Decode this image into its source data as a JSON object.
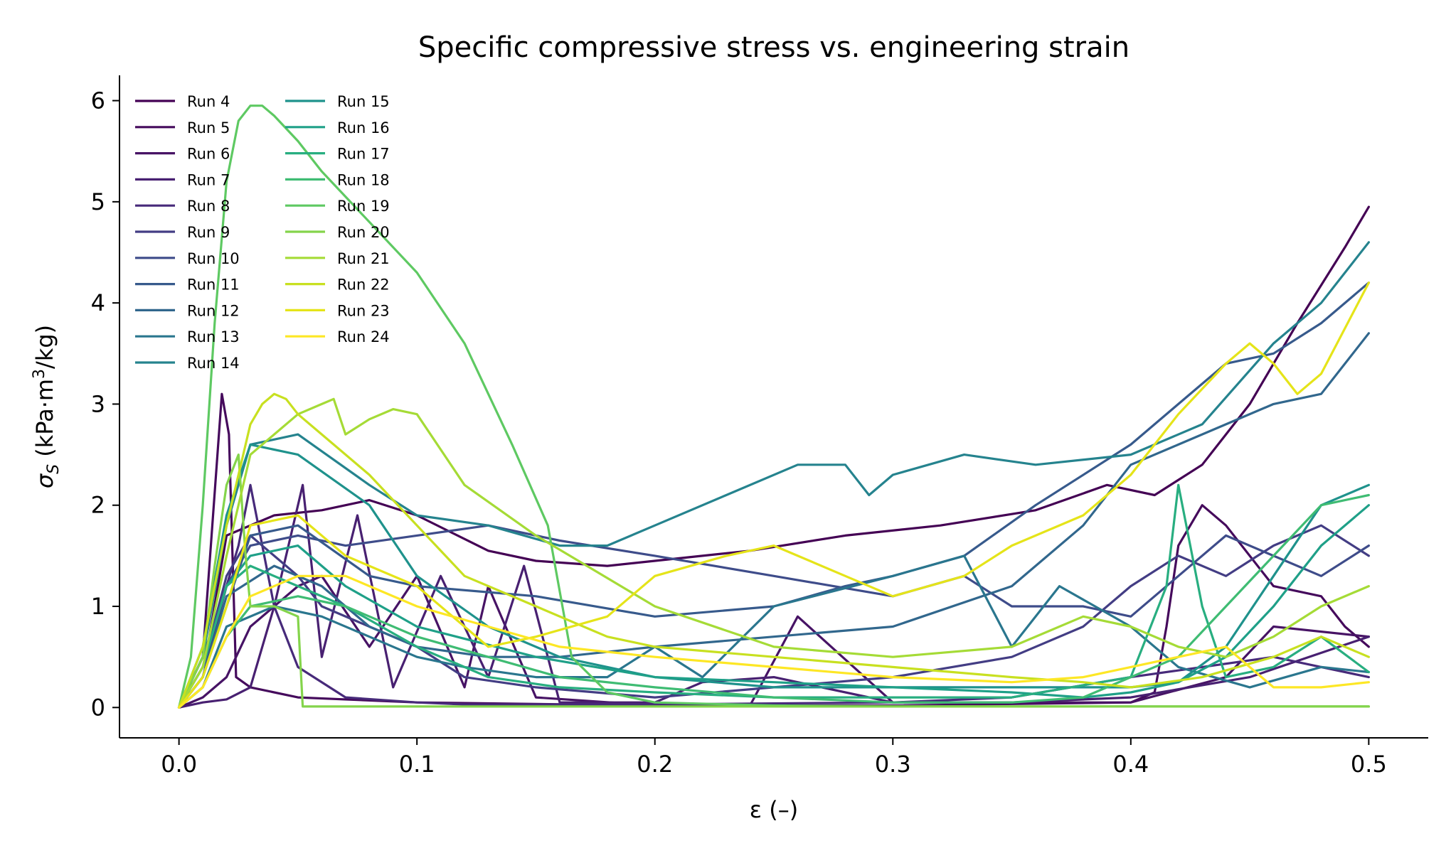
{
  "chart_data": {
    "type": "line",
    "title": "Specific compressive stress vs. engineering strain",
    "xlabel": "ε (–)",
    "ylabel_main": "σ",
    "ylabel_sub": "S",
    "ylabel_units": " (kPa·m",
    "ylabel_sup": "3",
    "ylabel_end": "/kg)",
    "xlim": [
      -0.025,
      0.525
    ],
    "ylim": [
      -0.3,
      6.25
    ],
    "x_ticks": [
      0.0,
      0.1,
      0.2,
      0.3,
      0.4,
      0.5
    ],
    "x_tick_labels": [
      "0.0",
      "0.1",
      "0.2",
      "0.3",
      "0.4",
      "0.5"
    ],
    "y_ticks": [
      0,
      1,
      2,
      3,
      4,
      5,
      6
    ],
    "y_tick_labels": [
      "0",
      "1",
      "2",
      "3",
      "4",
      "5",
      "6"
    ],
    "grid": false,
    "legend_position": "top-left",
    "legend_columns": 2,
    "series": [
      {
        "name": "Run 4",
        "color": "#440154",
        "x": [
          0,
          0.012,
          0.02,
          0.04,
          0.06,
          0.08,
          0.1,
          0.13,
          0.15,
          0.18,
          0.2,
          0.24,
          0.28,
          0.32,
          0.36,
          0.39,
          0.41,
          0.43,
          0.45,
          0.47,
          0.49,
          0.5
        ],
        "y": [
          0,
          0.6,
          1.7,
          1.9,
          1.95,
          2.05,
          1.9,
          1.55,
          1.45,
          1.4,
          1.45,
          1.55,
          1.7,
          1.8,
          1.95,
          2.2,
          2.1,
          2.4,
          3.0,
          3.8,
          4.55,
          4.95
        ]
      },
      {
        "name": "Run 5",
        "color": "#450a5c",
        "x": [
          0,
          0.01,
          0.018,
          0.021,
          0.024,
          0.03,
          0.05,
          0.1,
          0.2,
          0.3,
          0.4,
          0.41,
          0.415,
          0.42,
          0.43,
          0.44,
          0.46,
          0.48,
          0.49,
          0.5
        ],
        "y": [
          0,
          0.5,
          3.1,
          2.7,
          0.3,
          0.2,
          0.1,
          0.05,
          0.02,
          0.02,
          0.05,
          0.15,
          0.8,
          1.6,
          2.0,
          1.8,
          1.2,
          1.1,
          0.8,
          0.6
        ]
      },
      {
        "name": "Run 6",
        "color": "#471365",
        "x": [
          0,
          0.01,
          0.02,
          0.03,
          0.05,
          0.06,
          0.08,
          0.1,
          0.12,
          0.13,
          0.15,
          0.2,
          0.24,
          0.26,
          0.3,
          0.4,
          0.44,
          0.46,
          0.5
        ],
        "y": [
          0,
          0.1,
          0.3,
          0.8,
          1.2,
          1.3,
          0.6,
          1.3,
          0.2,
          1.2,
          0.1,
          0.02,
          0.02,
          0.9,
          0.05,
          0.05,
          0.3,
          0.8,
          0.7
        ]
      },
      {
        "name": "Run 7",
        "color": "#482071",
        "x": [
          0,
          0.01,
          0.02,
          0.03,
          0.04,
          0.052,
          0.06,
          0.075,
          0.09,
          0.11,
          0.13,
          0.145,
          0.16,
          0.2,
          0.22,
          0.25,
          0.3,
          0.35,
          0.4,
          0.45,
          0.5
        ],
        "y": [
          0,
          0.05,
          0.08,
          0.2,
          1.0,
          2.2,
          0.5,
          1.9,
          0.2,
          1.3,
          0.3,
          1.4,
          0.05,
          0.05,
          0.25,
          0.3,
          0.05,
          0.05,
          0.1,
          0.3,
          0.7
        ]
      },
      {
        "name": "Run 8",
        "color": "#472a7a",
        "x": [
          0,
          0.01,
          0.02,
          0.025,
          0.03,
          0.04,
          0.05,
          0.07,
          0.1,
          0.12,
          0.15,
          0.2,
          0.3,
          0.35,
          0.4,
          0.43,
          0.46,
          0.48,
          0.5
        ],
        "y": [
          0,
          0.3,
          1.2,
          1.6,
          2.2,
          1.0,
          0.4,
          0.1,
          0.05,
          0.03,
          0.03,
          0.03,
          0.05,
          0.1,
          0.3,
          0.4,
          0.5,
          0.4,
          0.3
        ]
      },
      {
        "name": "Run 9",
        "color": "#433d84",
        "x": [
          0,
          0.01,
          0.02,
          0.03,
          0.04,
          0.05,
          0.06,
          0.08,
          0.1,
          0.12,
          0.15,
          0.2,
          0.25,
          0.3,
          0.35,
          0.38,
          0.4,
          0.42,
          0.44,
          0.46,
          0.48,
          0.5
        ],
        "y": [
          0,
          0.4,
          1.3,
          1.7,
          1.5,
          1.3,
          1.0,
          0.8,
          0.6,
          0.3,
          0.2,
          0.1,
          0.2,
          0.3,
          0.5,
          0.8,
          1.2,
          1.5,
          1.3,
          1.6,
          1.8,
          1.5
        ]
      },
      {
        "name": "Run 10",
        "color": "#3e4c8a",
        "x": [
          0,
          0.01,
          0.02,
          0.03,
          0.05,
          0.07,
          0.1,
          0.13,
          0.16,
          0.2,
          0.25,
          0.3,
          0.33,
          0.35,
          0.38,
          0.4,
          0.42,
          0.44,
          0.46,
          0.48,
          0.5
        ],
        "y": [
          0,
          0.5,
          1.2,
          1.6,
          1.7,
          1.6,
          1.7,
          1.8,
          1.65,
          1.5,
          1.3,
          1.1,
          1.3,
          1.0,
          1.0,
          0.9,
          1.3,
          1.7,
          1.5,
          1.3,
          1.6
        ]
      },
      {
        "name": "Run 11",
        "color": "#375a8c",
        "x": [
          0,
          0.01,
          0.02,
          0.03,
          0.05,
          0.08,
          0.1,
          0.15,
          0.2,
          0.25,
          0.28,
          0.3,
          0.33,
          0.36,
          0.4,
          0.42,
          0.44,
          0.46,
          0.48,
          0.5
        ],
        "y": [
          0,
          0.3,
          1.0,
          1.7,
          1.8,
          1.3,
          1.2,
          1.1,
          0.9,
          1.0,
          1.2,
          1.3,
          1.5,
          2.0,
          2.6,
          3.0,
          3.4,
          3.5,
          3.8,
          4.2
        ]
      },
      {
        "name": "Run 12",
        "color": "#31678d",
        "x": [
          0,
          0.01,
          0.02,
          0.04,
          0.06,
          0.08,
          0.1,
          0.13,
          0.16,
          0.2,
          0.25,
          0.3,
          0.35,
          0.38,
          0.4,
          0.42,
          0.44,
          0.46,
          0.48,
          0.5
        ],
        "y": [
          0,
          0.3,
          1.1,
          1.4,
          1.2,
          0.8,
          0.6,
          0.5,
          0.5,
          0.6,
          0.7,
          0.8,
          1.2,
          1.8,
          2.4,
          2.6,
          2.8,
          3.0,
          3.1,
          3.7
        ]
      },
      {
        "name": "Run 13",
        "color": "#2a768e",
        "x": [
          0,
          0.01,
          0.02,
          0.04,
          0.06,
          0.08,
          0.1,
          0.12,
          0.15,
          0.18,
          0.2,
          0.22,
          0.25,
          0.3,
          0.33,
          0.35,
          0.37,
          0.4,
          0.42,
          0.45,
          0.48,
          0.5
        ],
        "y": [
          0,
          0.2,
          0.8,
          1.0,
          0.9,
          0.7,
          0.5,
          0.4,
          0.3,
          0.3,
          0.6,
          0.3,
          1.0,
          1.3,
          1.5,
          0.6,
          1.2,
          0.8,
          0.4,
          0.2,
          0.4,
          0.35
        ]
      },
      {
        "name": "Run 14",
        "color": "#25838e",
        "x": [
          0,
          0.01,
          0.02,
          0.03,
          0.05,
          0.08,
          0.1,
          0.13,
          0.16,
          0.18,
          0.2,
          0.23,
          0.26,
          0.28,
          0.29,
          0.3,
          0.33,
          0.36,
          0.4,
          0.43,
          0.46,
          0.48,
          0.5
        ],
        "y": [
          0,
          0.5,
          1.8,
          2.6,
          2.7,
          2.2,
          1.9,
          1.8,
          1.6,
          1.6,
          1.8,
          2.1,
          2.4,
          2.4,
          2.1,
          2.3,
          2.5,
          2.4,
          2.5,
          2.8,
          3.6,
          4.0,
          4.6
        ]
      },
      {
        "name": "Run 15",
        "color": "#1f928c",
        "x": [
          0,
          0.01,
          0.02,
          0.03,
          0.05,
          0.08,
          0.1,
          0.13,
          0.16,
          0.2,
          0.25,
          0.3,
          0.35,
          0.38,
          0.4,
          0.42,
          0.44,
          0.46,
          0.48,
          0.5
        ],
        "y": [
          0,
          0.6,
          1.9,
          2.6,
          2.5,
          2.0,
          1.3,
          0.8,
          0.5,
          0.3,
          0.2,
          0.2,
          0.2,
          0.2,
          0.2,
          0.25,
          0.6,
          1.3,
          2.0,
          2.2
        ]
      },
      {
        "name": "Run 16",
        "color": "#1fa088",
        "x": [
          0,
          0.01,
          0.02,
          0.03,
          0.05,
          0.07,
          0.1,
          0.15,
          0.2,
          0.25,
          0.3,
          0.35,
          0.38,
          0.4,
          0.42,
          0.44,
          0.46,
          0.48,
          0.5
        ],
        "y": [
          0,
          0.4,
          1.2,
          1.5,
          1.6,
          1.2,
          0.8,
          0.5,
          0.3,
          0.25,
          0.2,
          0.15,
          0.1,
          0.15,
          0.25,
          0.5,
          1.0,
          1.6,
          2.0
        ]
      },
      {
        "name": "Run 17",
        "color": "#28ae80",
        "x": [
          0,
          0.01,
          0.02,
          0.03,
          0.05,
          0.07,
          0.1,
          0.13,
          0.16,
          0.2,
          0.25,
          0.3,
          0.35,
          0.4,
          0.415,
          0.42,
          0.43,
          0.44,
          0.46,
          0.48,
          0.5
        ],
        "y": [
          0,
          0.4,
          1.2,
          1.4,
          1.2,
          1.0,
          0.6,
          0.3,
          0.2,
          0.15,
          0.1,
          0.1,
          0.1,
          0.3,
          1.2,
          2.2,
          1.0,
          0.3,
          0.4,
          0.7,
          0.35
        ]
      },
      {
        "name": "Run 18",
        "color": "#3fbc73",
        "x": [
          0,
          0.01,
          0.02,
          0.03,
          0.05,
          0.07,
          0.1,
          0.13,
          0.16,
          0.2,
          0.25,
          0.3,
          0.35,
          0.38,
          0.4,
          0.42,
          0.44,
          0.46,
          0.48,
          0.5
        ],
        "y": [
          0,
          0.2,
          0.7,
          1.0,
          1.1,
          1.0,
          0.7,
          0.5,
          0.3,
          0.2,
          0.1,
          0.05,
          0.05,
          0.1,
          0.3,
          0.5,
          1.0,
          1.5,
          2.0,
          2.1
        ]
      },
      {
        "name": "Run 19",
        "color": "#5ec962",
        "x": [
          0,
          0.005,
          0.01,
          0.015,
          0.02,
          0.025,
          0.03,
          0.035,
          0.04,
          0.05,
          0.06,
          0.08,
          0.1,
          0.12,
          0.14,
          0.155,
          0.165,
          0.18,
          0.2,
          0.25,
          0.3,
          0.35,
          0.4,
          0.45,
          0.5
        ],
        "y": [
          0,
          0.5,
          2.0,
          3.8,
          5.2,
          5.8,
          5.95,
          5.95,
          5.85,
          5.6,
          5.3,
          4.8,
          4.3,
          3.6,
          2.6,
          1.8,
          0.5,
          0.15,
          0.05,
          0.02,
          0.01,
          0.01,
          0.01,
          0.01,
          0.01
        ]
      },
      {
        "name": "Run 20",
        "color": "#84d44b",
        "x": [
          0,
          0.01,
          0.015,
          0.02,
          0.025,
          0.028,
          0.03,
          0.04,
          0.05,
          0.052,
          0.055,
          0.06,
          0.08,
          0.1,
          0.12,
          0.15,
          0.2,
          0.25,
          0.3,
          0.35,
          0.4,
          0.45,
          0.5
        ],
        "y": [
          0,
          0.5,
          1.4,
          2.2,
          2.5,
          1.5,
          1.0,
          1.0,
          0.9,
          0.01,
          0.01,
          0.01,
          0.01,
          0.01,
          0.01,
          0.01,
          0.01,
          0.01,
          0.01,
          0.01,
          0.01,
          0.01,
          0.01
        ]
      },
      {
        "name": "Run 21",
        "color": "#a5db36",
        "x": [
          0,
          0.01,
          0.02,
          0.03,
          0.04,
          0.05,
          0.06,
          0.065,
          0.07,
          0.08,
          0.09,
          0.1,
          0.12,
          0.15,
          0.2,
          0.25,
          0.3,
          0.35,
          0.38,
          0.4,
          0.42,
          0.44,
          0.46,
          0.48,
          0.5
        ],
        "y": [
          0,
          0.4,
          1.5,
          2.5,
          2.7,
          2.9,
          3.0,
          3.05,
          2.7,
          2.85,
          2.95,
          2.9,
          2.2,
          1.7,
          1.0,
          0.6,
          0.5,
          0.6,
          0.9,
          0.8,
          0.6,
          0.5,
          0.7,
          1.0,
          1.2
        ]
      },
      {
        "name": "Run 22",
        "color": "#c8e020",
        "x": [
          0,
          0.01,
          0.02,
          0.03,
          0.035,
          0.04,
          0.045,
          0.05,
          0.06,
          0.08,
          0.1,
          0.12,
          0.15,
          0.18,
          0.2,
          0.25,
          0.3,
          0.35,
          0.38,
          0.4,
          0.43,
          0.46,
          0.48,
          0.5
        ],
        "y": [
          0,
          0.6,
          1.8,
          2.8,
          3.0,
          3.1,
          3.05,
          2.9,
          2.7,
          2.3,
          1.8,
          1.3,
          1.0,
          0.7,
          0.6,
          0.5,
          0.4,
          0.3,
          0.25,
          0.2,
          0.3,
          0.5,
          0.7,
          0.5
        ]
      },
      {
        "name": "Run 23",
        "color": "#e5e419",
        "x": [
          0,
          0.01,
          0.02,
          0.03,
          0.05,
          0.07,
          0.1,
          0.13,
          0.15,
          0.18,
          0.2,
          0.23,
          0.25,
          0.28,
          0.3,
          0.33,
          0.35,
          0.38,
          0.4,
          0.42,
          0.44,
          0.45,
          0.46,
          0.47,
          0.48,
          0.5
        ],
        "y": [
          0,
          0.3,
          1.0,
          1.8,
          1.9,
          1.5,
          1.2,
          0.6,
          0.7,
          0.9,
          1.3,
          1.5,
          1.6,
          1.3,
          1.1,
          1.3,
          1.6,
          1.9,
          2.3,
          2.9,
          3.4,
          3.6,
          3.4,
          3.1,
          3.3,
          4.2
        ]
      },
      {
        "name": "Run 24",
        "color": "#fde725",
        "x": [
          0,
          0.01,
          0.02,
          0.03,
          0.05,
          0.07,
          0.1,
          0.13,
          0.16,
          0.2,
          0.25,
          0.3,
          0.35,
          0.38,
          0.4,
          0.42,
          0.44,
          0.46,
          0.48,
          0.5
        ],
        "y": [
          0,
          0.2,
          0.7,
          1.1,
          1.3,
          1.3,
          1.0,
          0.8,
          0.6,
          0.5,
          0.4,
          0.3,
          0.25,
          0.3,
          0.4,
          0.5,
          0.6,
          0.2,
          0.2,
          0.25
        ]
      }
    ]
  }
}
